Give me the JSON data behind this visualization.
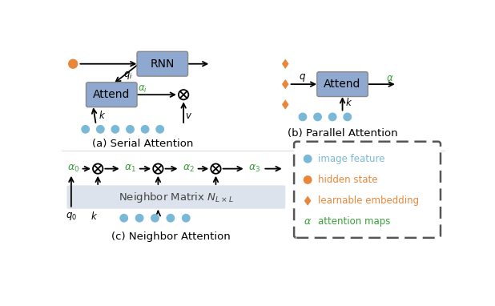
{
  "bg_color": "#ffffff",
  "box_color": "#8fa8d0",
  "neighbor_box_color": "#dde3ec",
  "blue_dot_color": "#7ab8d8",
  "orange_dot_color": "#e8873a",
  "orange_diamond_color": "#e8873a",
  "green_color": "#3a9e3a",
  "caption_a": "(a) Serial Attention",
  "caption_b": "(b) Parallel Attention",
  "caption_c": "(c) Neighbor Attention",
  "rnn_label": "RNN",
  "attend_label_a": "Attend",
  "attend_label_b": "Attend",
  "legend_text_1": "image feature",
  "legend_text_2": "hidden state",
  "legend_text_3": "learnable embedding",
  "legend_text_4": "attention maps"
}
